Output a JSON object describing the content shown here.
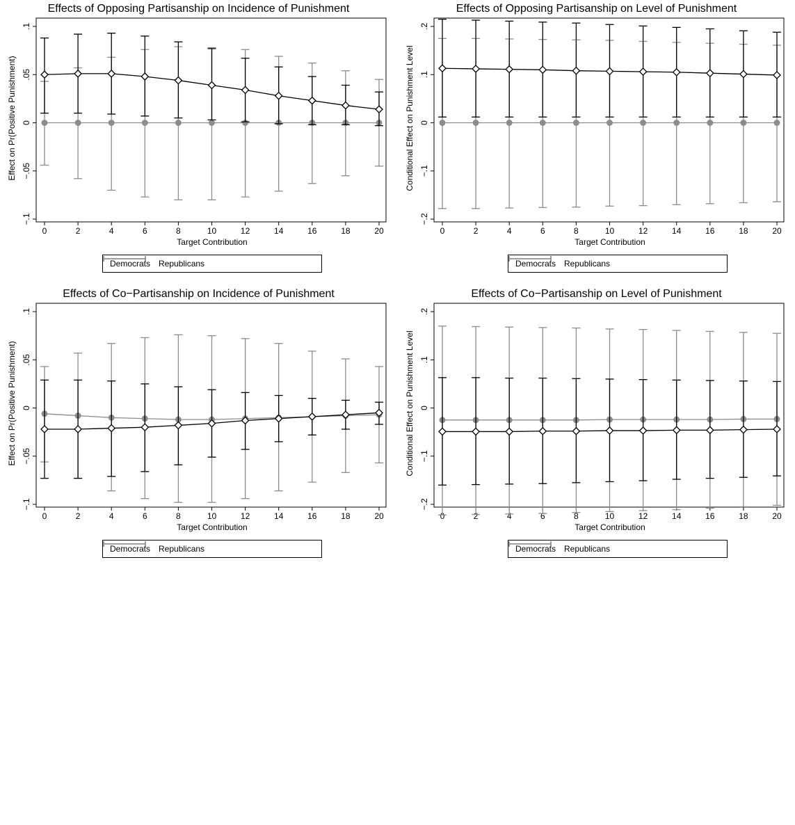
{
  "chart_data": [
    {
      "type": "line",
      "title": "Effects of Opposing Partisanship on Incidence of Punishment",
      "xlabel": "Target Contribution",
      "ylabel": "Effect on Pr(Positive Punishment)",
      "xlim": [
        0,
        20
      ],
      "ylim": [
        -0.1,
        0.1
      ],
      "xticks": [
        0,
        2,
        4,
        6,
        8,
        10,
        12,
        14,
        16,
        18,
        20
      ],
      "yticks": [
        -0.1,
        -0.05,
        0,
        0.05,
        0.1
      ],
      "ytick_labels": [
        "−.1",
        "−.05",
        "0",
        ".05",
        ".1"
      ],
      "grid": false,
      "legend": "bottom",
      "x": [
        0,
        2,
        4,
        6,
        8,
        10,
        12,
        14,
        16,
        18,
        20
      ],
      "series": [
        {
          "name": "Democrats",
          "color": "#000000",
          "marker": "diamond",
          "values": [
            0.05,
            0.051,
            0.051,
            0.048,
            0.044,
            0.039,
            0.034,
            0.028,
            0.023,
            0.018,
            0.014
          ],
          "lower": [
            0.01,
            0.01,
            0.009,
            0.007,
            0.005,
            0.003,
            0.001,
            -0.001,
            -0.002,
            -0.002,
            -0.003
          ],
          "upper": [
            0.088,
            0.092,
            0.093,
            0.09,
            0.084,
            0.077,
            0.067,
            0.058,
            0.048,
            0.039,
            0.032
          ]
        },
        {
          "name": "Republicans",
          "color": "#8c8c8c",
          "marker": "circle",
          "values": [
            0,
            0,
            0,
            0,
            0,
            0,
            0,
            0,
            0,
            0,
            0
          ],
          "lower": [
            -0.044,
            -0.058,
            -0.07,
            -0.077,
            -0.08,
            -0.08,
            -0.077,
            -0.071,
            -0.063,
            -0.055,
            -0.045
          ],
          "upper": [
            0.043,
            0.057,
            0.068,
            0.076,
            0.079,
            0.078,
            0.076,
            0.069,
            0.062,
            0.054,
            0.045
          ]
        }
      ]
    },
    {
      "type": "line",
      "title": "Effects of Opposing Partisanship on Level of Punishment",
      "xlabel": "Target Contribution",
      "ylabel": "Conditional Effect on Punishment Level",
      "xlim": [
        0,
        20
      ],
      "ylim": [
        -0.2,
        0.2
      ],
      "xticks": [
        0,
        2,
        4,
        6,
        8,
        10,
        12,
        14,
        16,
        18,
        20
      ],
      "yticks": [
        -0.2,
        -0.1,
        0,
        0.1,
        0.2
      ],
      "ytick_labels": [
        "−.2",
        "−.1",
        "0",
        ".1",
        ".2"
      ],
      "grid": false,
      "legend": "bottom",
      "x": [
        0,
        2,
        4,
        6,
        8,
        10,
        12,
        14,
        16,
        18,
        20
      ],
      "series": [
        {
          "name": "Democrats",
          "color": "#000000",
          "marker": "diamond",
          "values": [
            0.113,
            0.112,
            0.111,
            0.11,
            0.108,
            0.107,
            0.106,
            0.105,
            0.103,
            0.101,
            0.099
          ],
          "lower": [
            0.012,
            0.012,
            0.012,
            0.012,
            0.012,
            0.012,
            0.012,
            0.012,
            0.012,
            0.012,
            0.012
          ],
          "upper": [
            0.215,
            0.213,
            0.211,
            0.209,
            0.207,
            0.204,
            0.201,
            0.198,
            0.195,
            0.191,
            0.188
          ]
        },
        {
          "name": "Republicans",
          "color": "#8c8c8c",
          "marker": "circle",
          "values": [
            0,
            0,
            0,
            0,
            0,
            0,
            0,
            0,
            0,
            0,
            0
          ],
          "lower": [
            -0.178,
            -0.178,
            -0.177,
            -0.176,
            -0.175,
            -0.173,
            -0.172,
            -0.17,
            -0.168,
            -0.166,
            -0.164
          ],
          "upper": [
            0.175,
            0.175,
            0.174,
            0.173,
            0.172,
            0.171,
            0.169,
            0.167,
            0.165,
            0.163,
            0.161
          ]
        }
      ]
    },
    {
      "type": "line",
      "title": "Effects of Co−Partisanship on Incidence of Punishment",
      "xlabel": "Target Contribution",
      "ylabel": "Effect on Pr(Positive Punishment)",
      "xlim": [
        0,
        20
      ],
      "ylim": [
        -0.1,
        0.1
      ],
      "xticks": [
        0,
        2,
        4,
        6,
        8,
        10,
        12,
        14,
        16,
        18,
        20
      ],
      "yticks": [
        -0.1,
        -0.05,
        0,
        0.05,
        0.1
      ],
      "ytick_labels": [
        "−.1",
        "−.05",
        "0",
        ".05",
        ".1"
      ],
      "grid": false,
      "legend": "bottom",
      "x": [
        0,
        2,
        4,
        6,
        8,
        10,
        12,
        14,
        16,
        18,
        20
      ],
      "series": [
        {
          "name": "Democrats",
          "color": "#000000",
          "marker": "diamond",
          "values": [
            -0.022,
            -0.022,
            -0.021,
            -0.02,
            -0.018,
            -0.016,
            -0.013,
            -0.011,
            -0.009,
            -0.007,
            -0.005
          ],
          "lower": [
            -0.073,
            -0.073,
            -0.071,
            -0.066,
            -0.059,
            -0.051,
            -0.043,
            -0.035,
            -0.028,
            -0.022,
            -0.017
          ],
          "upper": [
            0.029,
            0.029,
            0.028,
            0.025,
            0.022,
            0.019,
            0.016,
            0.013,
            0.01,
            0.008,
            0.006
          ]
        },
        {
          "name": "Republicans",
          "color": "#8c8c8c",
          "marker": "circle",
          "values": [
            -0.006,
            -0.008,
            -0.01,
            -0.011,
            -0.012,
            -0.012,
            -0.011,
            -0.01,
            -0.009,
            -0.008,
            -0.007
          ],
          "lower": [
            -0.056,
            -0.073,
            -0.086,
            -0.094,
            -0.098,
            -0.098,
            -0.094,
            -0.086,
            -0.077,
            -0.067,
            -0.057
          ],
          "upper": [
            0.043,
            0.057,
            0.067,
            0.073,
            0.076,
            0.075,
            0.072,
            0.067,
            0.059,
            0.051,
            0.043
          ]
        }
      ]
    },
    {
      "type": "line",
      "title": "Effects of Co−Partisanship on Level of Punishment",
      "xlabel": "Target Contribution",
      "ylabel": "Conditional Effect on Punishment Level",
      "xlim": [
        0,
        20
      ],
      "ylim": [
        -0.2,
        0.2
      ],
      "xticks": [
        0,
        2,
        4,
        6,
        8,
        10,
        12,
        14,
        16,
        18,
        20
      ],
      "yticks": [
        -0.2,
        -0.1,
        0,
        0.1,
        0.2
      ],
      "ytick_labels": [
        "−.2",
        "−.1",
        "0",
        ".1",
        ".2"
      ],
      "grid": false,
      "legend": "bottom",
      "x": [
        0,
        2,
        4,
        6,
        8,
        10,
        12,
        14,
        16,
        18,
        20
      ],
      "series": [
        {
          "name": "Democrats",
          "color": "#000000",
          "marker": "diamond",
          "values": [
            -0.049,
            -0.049,
            -0.049,
            -0.048,
            -0.048,
            -0.047,
            -0.047,
            -0.046,
            -0.046,
            -0.045,
            -0.044
          ],
          "lower": [
            -0.16,
            -0.159,
            -0.158,
            -0.157,
            -0.155,
            -0.153,
            -0.151,
            -0.148,
            -0.146,
            -0.144,
            -0.141
          ],
          "upper": [
            0.063,
            0.063,
            0.062,
            0.062,
            0.061,
            0.06,
            0.059,
            0.058,
            0.057,
            0.056,
            0.055
          ]
        },
        {
          "name": "Republicans",
          "color": "#8c8c8c",
          "marker": "circle",
          "values": [
            -0.025,
            -0.025,
            -0.025,
            -0.025,
            -0.025,
            -0.024,
            -0.024,
            -0.024,
            -0.024,
            -0.023,
            -0.023
          ],
          "lower": [
            -0.222,
            -0.221,
            -0.22,
            -0.219,
            -0.217,
            -0.215,
            -0.213,
            -0.211,
            -0.208,
            -0.205,
            -0.202
          ],
          "upper": [
            0.17,
            0.169,
            0.168,
            0.167,
            0.166,
            0.164,
            0.163,
            0.161,
            0.159,
            0.157,
            0.155
          ]
        }
      ]
    }
  ]
}
